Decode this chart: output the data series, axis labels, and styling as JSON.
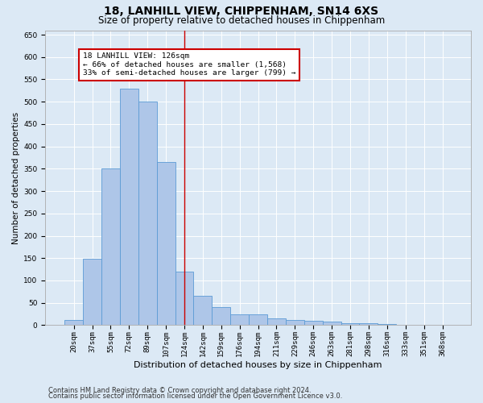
{
  "title": "18, LANHILL VIEW, CHIPPENHAM, SN14 6XS",
  "subtitle": "Size of property relative to detached houses in Chippenham",
  "xlabel": "Distribution of detached houses by size in Chippenham",
  "ylabel": "Number of detached properties",
  "categories": [
    "20sqm",
    "37sqm",
    "55sqm",
    "72sqm",
    "89sqm",
    "107sqm",
    "124sqm",
    "142sqm",
    "159sqm",
    "176sqm",
    "194sqm",
    "211sqm",
    "229sqm",
    "246sqm",
    "263sqm",
    "281sqm",
    "298sqm",
    "316sqm",
    "333sqm",
    "351sqm",
    "368sqm"
  ],
  "values": [
    12,
    148,
    350,
    530,
    500,
    365,
    120,
    65,
    40,
    25,
    25,
    15,
    12,
    10,
    8,
    5,
    5,
    2,
    1,
    0,
    0
  ],
  "bar_color": "#aec6e8",
  "bar_edge_color": "#5b9bd5",
  "property_line_x": 6.0,
  "annotation_text": "18 LANHILL VIEW: 126sqm\n← 66% of detached houses are smaller (1,568)\n33% of semi-detached houses are larger (799) →",
  "annotation_box_color": "#ffffff",
  "annotation_box_edge": "#cc0000",
  "vline_color": "#cc0000",
  "ylim": [
    0,
    660
  ],
  "yticks": [
    0,
    50,
    100,
    150,
    200,
    250,
    300,
    350,
    400,
    450,
    500,
    550,
    600,
    650
  ],
  "background_color": "#dce9f5",
  "plot_bg_color": "#dce9f5",
  "footer1": "Contains HM Land Registry data © Crown copyright and database right 2024.",
  "footer2": "Contains public sector information licensed under the Open Government Licence v3.0.",
  "title_fontsize": 10,
  "subtitle_fontsize": 8.5,
  "ylabel_fontsize": 7.5,
  "xlabel_fontsize": 8,
  "tick_fontsize": 6.5,
  "annotation_fontsize": 6.8,
  "footer_fontsize": 6
}
